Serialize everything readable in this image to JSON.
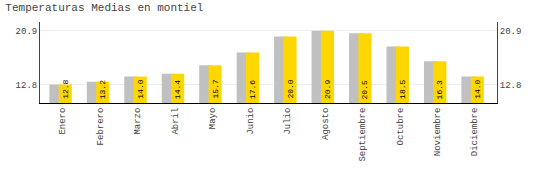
{
  "chart_data": {
    "type": "bar",
    "title": "Temperaturas Medias en montiel",
    "categories": [
      "Enero",
      "Febrero",
      "Marzo",
      "Abril",
      "Mayo",
      "Junio",
      "Julio",
      "Agosto",
      "Septiembre",
      "Octubre",
      "Noviembre",
      "Diciembre"
    ],
    "series": [
      {
        "color": "#C0C0C0",
        "values": [
          12.8,
          13.2,
          14.0,
          14.4,
          15.7,
          17.6,
          20.0,
          20.9,
          20.5,
          18.5,
          16.3,
          14.0
        ]
      },
      {
        "color": "#FFD700",
        "values": [
          12.8,
          13.2,
          14.0,
          14.4,
          15.7,
          17.6,
          20.0,
          20.9,
          20.5,
          18.5,
          16.3,
          14.0
        ],
        "value_labels": [
          "12.8",
          "13.2",
          "14.0",
          "14.4",
          "15.7",
          "17.6",
          "20.0",
          "20.9",
          "20.5",
          "18.5",
          "16.3",
          "14.0"
        ]
      }
    ],
    "ylim": [
      10.0,
      22.2
    ],
    "yticks": [
      12.8,
      20.9
    ],
    "y2lim": [
      10.0,
      22.2
    ],
    "y2ticks": [
      12.8,
      20.9
    ],
    "grid": true,
    "data_labels": true
  }
}
